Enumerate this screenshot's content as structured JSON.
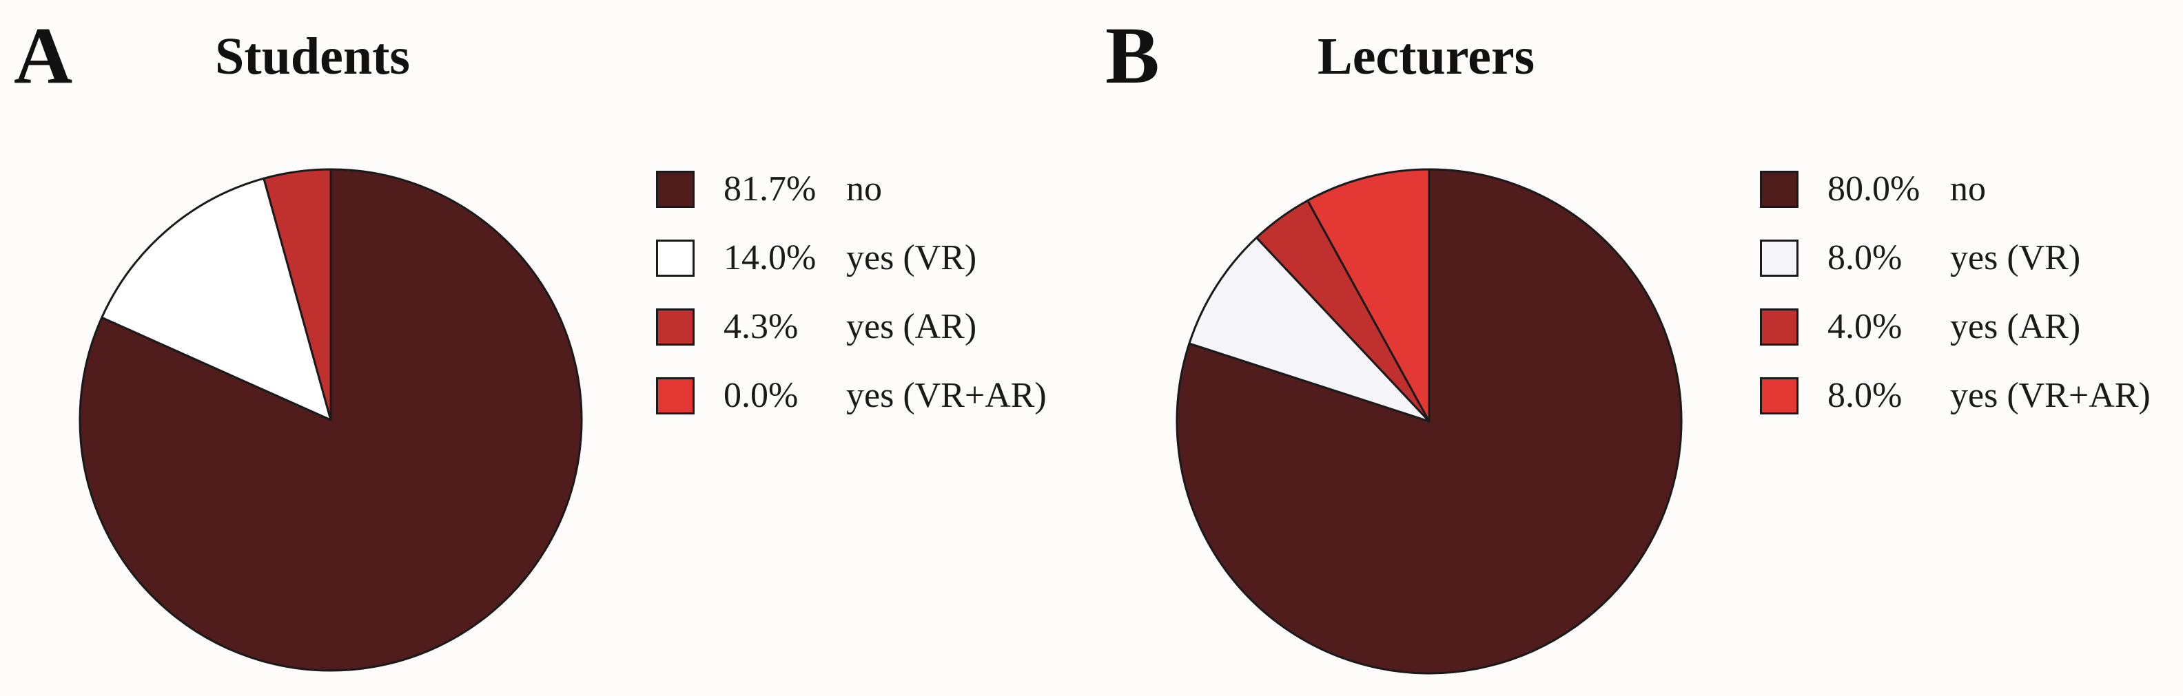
{
  "chart_data": [
    {
      "type": "pie",
      "panel_letter": "A",
      "title": "Students",
      "slices": [
        {
          "label": "no",
          "value": 81.7,
          "display": "81.7%",
          "color": "#501c1c"
        },
        {
          "label": "yes (VR)",
          "value": 14.0,
          "display": "14.0%",
          "color": "#ffffff"
        },
        {
          "label": "yes (AR)",
          "value": 4.3,
          "display": "4.3%",
          "color": "#c0302f"
        },
        {
          "label": "yes (VR+AR)",
          "value": 0.0,
          "display": "0.0%",
          "color": "#e33834"
        }
      ],
      "legend_position": "right"
    },
    {
      "type": "pie",
      "panel_letter": "B",
      "title": "Lecturers",
      "slices": [
        {
          "label": "no",
          "value": 80.0,
          "display": "80.0%",
          "color": "#501c1c"
        },
        {
          "label": "yes (VR)",
          "value": 8.0,
          "display": "8.0%",
          "color": "#f6f6fa"
        },
        {
          "label": "yes (AR)",
          "value": 4.0,
          "display": "4.0%",
          "color": "#c0302f"
        },
        {
          "label": "yes (VR+AR)",
          "value": 8.0,
          "display": "8.0%",
          "color": "#e33834"
        }
      ],
      "legend_position": "right"
    }
  ]
}
